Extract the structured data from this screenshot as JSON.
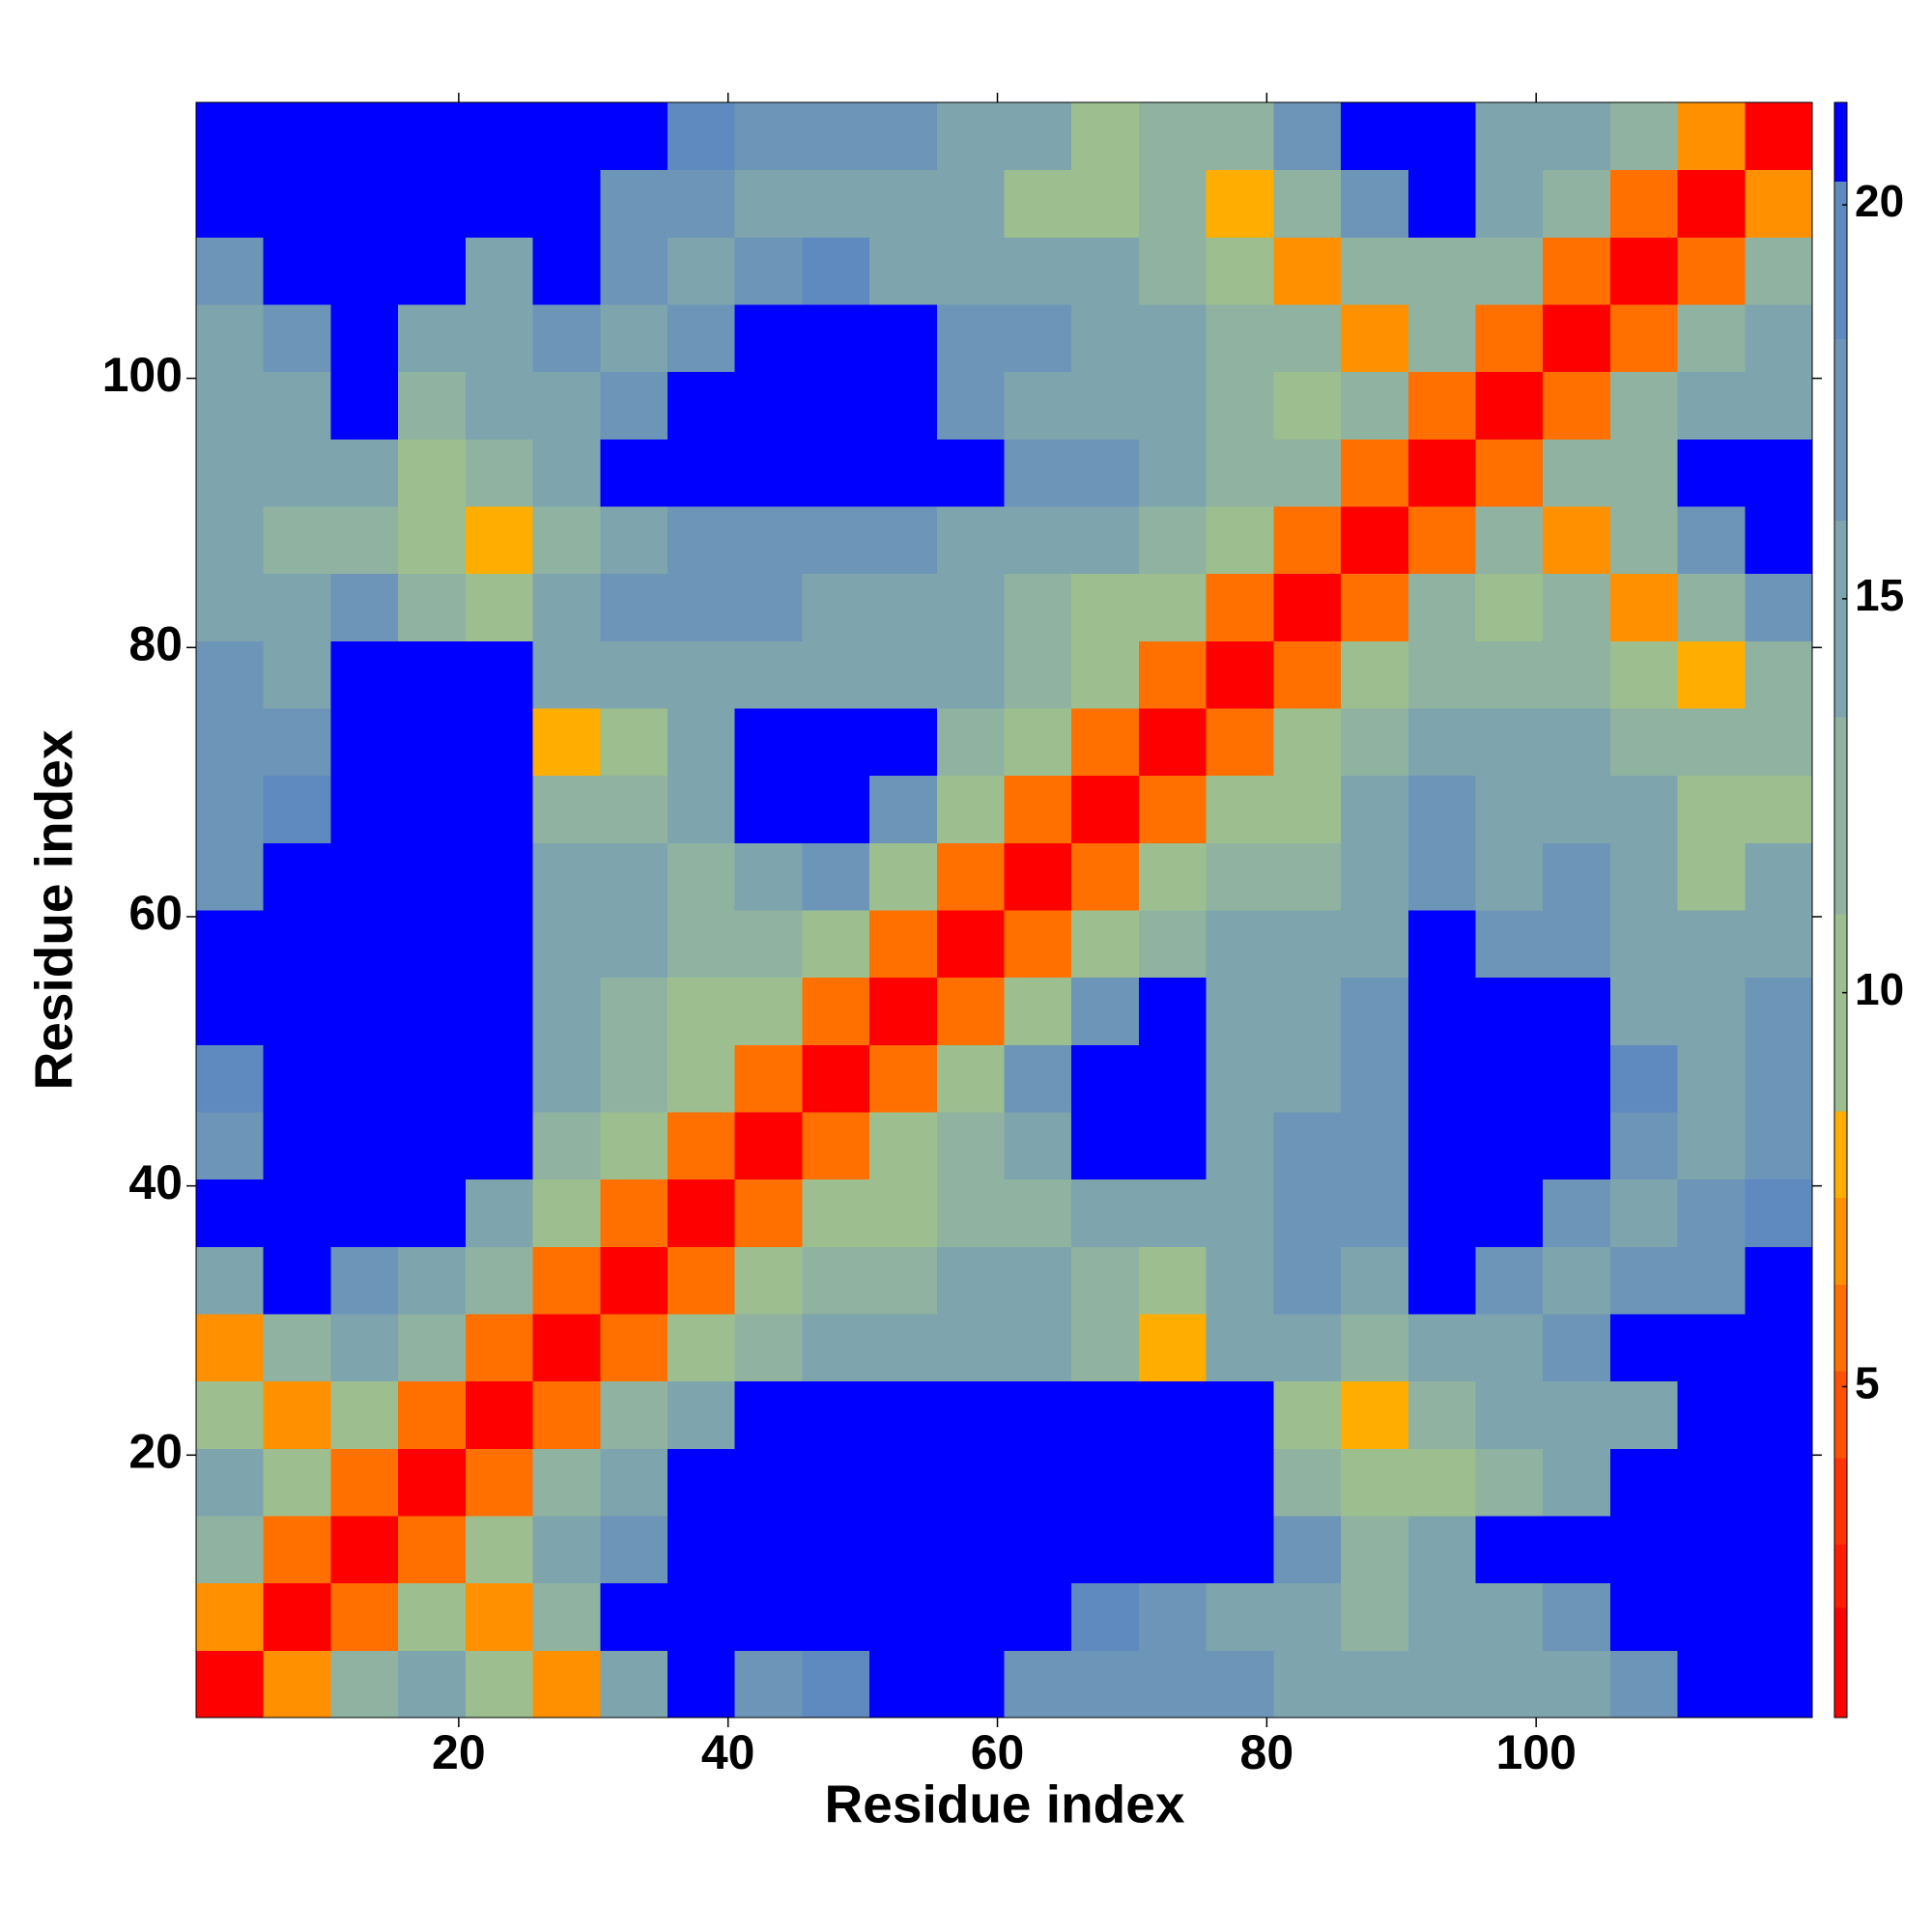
{
  "chart_data": {
    "type": "heatmap",
    "xlabel": "Residue index",
    "ylabel": "Residue index",
    "xlim": [
      0.5,
      120.5
    ],
    "ylim": [
      0.5,
      120.5
    ],
    "xticks": [
      20,
      40,
      60,
      80,
      100
    ],
    "yticks": [
      20,
      40,
      60,
      80,
      100
    ],
    "x_edges": [
      0.5,
      5.5,
      10.5,
      15.5,
      20.5,
      25.5,
      30.5,
      35.5,
      40.5,
      45.5,
      50.5,
      55.5,
      60.5,
      65.5,
      70.5,
      75.5,
      80.5,
      85.5,
      90.5,
      95.5,
      100.5,
      105.5,
      110.5,
      115.5,
      120.5
    ],
    "y_edges": [
      0.5,
      5.5,
      10.5,
      15.5,
      20.5,
      25.5,
      30.5,
      35.5,
      40.5,
      45.5,
      50.5,
      55.5,
      60.5,
      65.5,
      70.5,
      75.5,
      80.5,
      85.5,
      90.5,
      95.5,
      100.5,
      105.5,
      110.5,
      115.5,
      120.5
    ],
    "z": [
      [
        2,
        7,
        12,
        15,
        11,
        7,
        16,
        21,
        18,
        19,
        21,
        21,
        18,
        17,
        17,
        17,
        15,
        14,
        15,
        16,
        16,
        17,
        21,
        21
      ],
      [
        7,
        2,
        6,
        9,
        7,
        12,
        21,
        21,
        21,
        21,
        21,
        21,
        21,
        19,
        18,
        16,
        16,
        13,
        14,
        16,
        17,
        21,
        21,
        21
      ],
      [
        12,
        6,
        2,
        6,
        9,
        14,
        18,
        21,
        21,
        21,
        21,
        21,
        21,
        21,
        21,
        21,
        17,
        12,
        15,
        21,
        21,
        21,
        21,
        21
      ],
      [
        15,
        9,
        6,
        2,
        6,
        12,
        15,
        21,
        21,
        21,
        21,
        21,
        21,
        21,
        21,
        21,
        13,
        10,
        9,
        13,
        15,
        21,
        21,
        21
      ],
      [
        11,
        7,
        9,
        6,
        2,
        6,
        12,
        15,
        21,
        21,
        21,
        21,
        21,
        21,
        21,
        21,
        11,
        8,
        12,
        14,
        15,
        16,
        21,
        21
      ],
      [
        7,
        12,
        14,
        12,
        6,
        2,
        6,
        11,
        13,
        14,
        15,
        16,
        15,
        12,
        8,
        16,
        14,
        13,
        15,
        16,
        17,
        21,
        21,
        21
      ],
      [
        16,
        21,
        18,
        15,
        12,
        6,
        2,
        6,
        11,
        13,
        13,
        14,
        14,
        13,
        9,
        14,
        17,
        16,
        21,
        17,
        16,
        17,
        18,
        21
      ],
      [
        21,
        21,
        21,
        21,
        15,
        11,
        6,
        2,
        6,
        11,
        10,
        12,
        13,
        14,
        15,
        16,
        17,
        17,
        21,
        21,
        17,
        16,
        17,
        19
      ],
      [
        18,
        21,
        21,
        21,
        21,
        13,
        11,
        6,
        2,
        6,
        11,
        13,
        16,
        21,
        21,
        16,
        17,
        18,
        21,
        21,
        21,
        18,
        15,
        18
      ],
      [
        19,
        21,
        21,
        21,
        21,
        14,
        13,
        11,
        6,
        2,
        6,
        11,
        17,
        21,
        21,
        16,
        16,
        18,
        21,
        21,
        21,
        19,
        16,
        18
      ],
      [
        21,
        21,
        21,
        21,
        21,
        15,
        13,
        10,
        11,
        6,
        2,
        6,
        11,
        17,
        21,
        15,
        15,
        17,
        21,
        21,
        21,
        15,
        14,
        17
      ],
      [
        21,
        21,
        21,
        21,
        21,
        16,
        14,
        12,
        13,
        11,
        6,
        2,
        6,
        11,
        13,
        15,
        14,
        16,
        21,
        18,
        18,
        15,
        15,
        16
      ],
      [
        18,
        21,
        21,
        21,
        21,
        15,
        14,
        13,
        16,
        17,
        11,
        6,
        2,
        6,
        11,
        13,
        12,
        14,
        18,
        16,
        17,
        15,
        9,
        14
      ],
      [
        17,
        19,
        21,
        21,
        21,
        12,
        13,
        14,
        21,
        21,
        17,
        11,
        6,
        2,
        6,
        11,
        9,
        15,
        17,
        15,
        16,
        14,
        10,
        9
      ],
      [
        17,
        18,
        21,
        21,
        21,
        8,
        9,
        15,
        21,
        21,
        21,
        13,
        11,
        6,
        2,
        6,
        11,
        12,
        15,
        15,
        14,
        12,
        13,
        12
      ],
      [
        17,
        16,
        21,
        21,
        21,
        16,
        14,
        16,
        16,
        16,
        15,
        15,
        13,
        11,
        6,
        2,
        6,
        11,
        13,
        13,
        13,
        10,
        8,
        12
      ],
      [
        15,
        16,
        17,
        13,
        11,
        14,
        17,
        17,
        17,
        16,
        15,
        14,
        12,
        9,
        11,
        6,
        2,
        6,
        12,
        10,
        13,
        7,
        13,
        18
      ],
      [
        14,
        13,
        12,
        10,
        8,
        13,
        16,
        17,
        18,
        18,
        17,
        16,
        14,
        15,
        12,
        11,
        6,
        2,
        6,
        12,
        7,
        12,
        18,
        21
      ],
      [
        15,
        14,
        15,
        9,
        12,
        15,
        21,
        21,
        21,
        21,
        21,
        21,
        18,
        17,
        15,
        13,
        12,
        6,
        2,
        6,
        12,
        12,
        21,
        21
      ],
      [
        16,
        16,
        21,
        13,
        14,
        16,
        17,
        21,
        21,
        21,
        21,
        18,
        16,
        15,
        15,
        13,
        10,
        12,
        6,
        2,
        6,
        12,
        15,
        16
      ],
      [
        16,
        17,
        21,
        15,
        15,
        17,
        16,
        17,
        21,
        21,
        21,
        18,
        17,
        16,
        14,
        13,
        13,
        7,
        12,
        6,
        2,
        6,
        12,
        15
      ],
      [
        17,
        21,
        21,
        21,
        16,
        21,
        17,
        16,
        18,
        19,
        15,
        15,
        15,
        14,
        12,
        10,
        7,
        12,
        12,
        12,
        6,
        2,
        6,
        12
      ],
      [
        21,
        21,
        21,
        21,
        21,
        21,
        18,
        17,
        15,
        16,
        14,
        15,
        9,
        10,
        13,
        8,
        13,
        18,
        21,
        15,
        12,
        6,
        2,
        7
      ],
      [
        21,
        21,
        21,
        21,
        21,
        21,
        21,
        19,
        18,
        18,
        17,
        16,
        14,
        9,
        12,
        12,
        18,
        21,
        21,
        16,
        15,
        12,
        7,
        2
      ]
    ],
    "colorbar": {
      "clim": [
        0.8,
        21.3
      ],
      "levels": [
        0.8,
        2.2,
        3,
        4.1,
        5.2,
        6.3,
        7.4,
        8.5,
        11,
        13.5,
        16,
        18.3,
        20.3,
        21.3
      ],
      "colors": [
        "#ff0000",
        "#ff1a00",
        "#ff3300",
        "#ff5200",
        "#ff7000",
        "#ff9000",
        "#ffae00",
        "#9dbf8f",
        "#8fb3a0",
        "#7ea4ad",
        "#6d95b8",
        "#5f8ac0",
        "#0000ff"
      ],
      "ticks": [
        5,
        10,
        15,
        20
      ]
    }
  }
}
